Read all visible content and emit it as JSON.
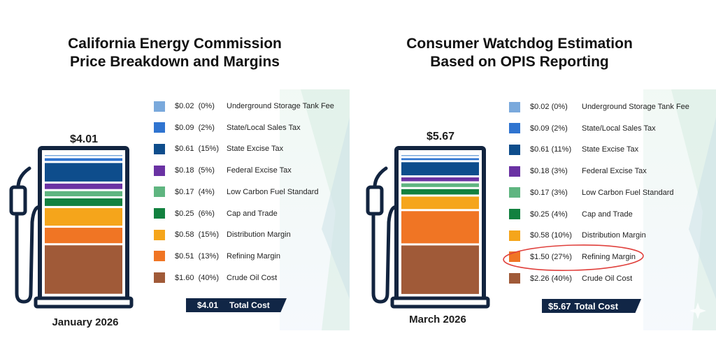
{
  "colors": {
    "ust": "#7aa9dc",
    "sales": "#2f74d0",
    "excise": "#0e4d8c",
    "federal": "#6a32a3",
    "lcfs": "#5fb580",
    "cap": "#12813f",
    "distribution": "#f5a51b",
    "refining": "#f07524",
    "crude": "#a05a38",
    "frame": "#12243f",
    "total_bg": "#112646",
    "annotation": "#e0403c"
  },
  "chart_data": [
    {
      "type": "bar",
      "stacked": true,
      "title": "California Energy Commission Price Breakdown and Margins",
      "title_lines": [
        "California Energy Commission",
        "Price Breakdown and Margins"
      ],
      "period": "January 2026",
      "total_label": "$4.01",
      "total_value": 4.01,
      "total_box": {
        "value": "$4.01",
        "label": "Total Cost"
      },
      "categories": [
        "Underground Storage Tank Fee",
        "State/Local Sales Tax",
        "State Excise Tax",
        "Federal Excise Tax",
        "Low Carbon Fuel Standard",
        "Cap and Trade",
        "Distribution Margin",
        "Refining Margin",
        "Crude Oil Cost"
      ],
      "series": [
        {
          "key": "ust",
          "name": "Underground Storage Tank Fee",
          "value": 0.02,
          "value_label": "$0.02",
          "pct_label": "(0%)"
        },
        {
          "key": "sales",
          "name": "State/Local Sales Tax",
          "value": 0.09,
          "value_label": "$0.09",
          "pct_label": "(2%)"
        },
        {
          "key": "excise",
          "name": "State Excise Tax",
          "value": 0.61,
          "value_label": "$0.61",
          "pct_label": "(15%)"
        },
        {
          "key": "federal",
          "name": "Federal Excise Tax",
          "value": 0.18,
          "value_label": "$0.18",
          "pct_label": "(5%)"
        },
        {
          "key": "lcfs",
          "name": "Low Carbon Fuel Standard",
          "value": 0.17,
          "value_label": "$0.17",
          "pct_label": "(4%)"
        },
        {
          "key": "cap",
          "name": "Cap and Trade",
          "value": 0.25,
          "value_label": "$0.25",
          "pct_label": "(6%)"
        },
        {
          "key": "distribution",
          "name": "Distribution Margin",
          "value": 0.58,
          "value_label": "$0.58",
          "pct_label": "(15%)"
        },
        {
          "key": "refining",
          "name": "Refining Margin",
          "value": 0.51,
          "value_label": "$0.51",
          "pct_label": "(13%)"
        },
        {
          "key": "crude",
          "name": "Crude Oil Cost",
          "value": 1.6,
          "value_label": "$1.60",
          "pct_label": "(40%)"
        }
      ]
    },
    {
      "type": "bar",
      "stacked": true,
      "title": "Consumer Watchdog Estimation Based on OPIS Reporting",
      "title_lines": [
        "Consumer Watchdog Estimation",
        "Based on OPIS Reporting"
      ],
      "period": "March 2026",
      "total_label": "$5.67",
      "total_value": 5.67,
      "total_box": {
        "value": "$5.67",
        "label": "Total Cost"
      },
      "highlighted": "Refining Margin",
      "categories": [
        "Underground Storage Tank Fee",
        "State/Local Sales Tax",
        "State Excise Tax",
        "Federal Excise Tax",
        "Low Carbon Fuel Standard",
        "Cap and Trade",
        "Distribution Margin",
        "Refining Margin",
        "Crude Oil Cost"
      ],
      "series": [
        {
          "key": "ust",
          "name": "Underground Storage Tank Fee",
          "value": 0.02,
          "value_label": "$0.02",
          "pct_label": "(0%)"
        },
        {
          "key": "sales",
          "name": "State/Local Sales Tax",
          "value": 0.09,
          "value_label": "$0.09",
          "pct_label": "(2%)"
        },
        {
          "key": "excise",
          "name": "State Excise Tax",
          "value": 0.61,
          "value_label": "$0.61",
          "pct_label": "(11%)"
        },
        {
          "key": "federal",
          "name": "Federal Excise Tax",
          "value": 0.18,
          "value_label": "$0.18",
          "pct_label": "(3%)"
        },
        {
          "key": "lcfs",
          "name": "Low Carbon Fuel Standard",
          "value": 0.17,
          "value_label": "$0.17",
          "pct_label": "(3%)"
        },
        {
          "key": "cap",
          "name": "Cap and Trade",
          "value": 0.25,
          "value_label": "$0.25",
          "pct_label": "(4%)"
        },
        {
          "key": "distribution",
          "name": "Distribution Margin",
          "value": 0.58,
          "value_label": "$0.58",
          "pct_label": "(10%)"
        },
        {
          "key": "refining",
          "name": "Refining Margin",
          "value": 1.5,
          "value_label": "$1.50",
          "pct_label": "(27%)"
        },
        {
          "key": "crude",
          "name": "Crude Oil Cost",
          "value": 2.26,
          "value_label": "$2.26",
          "pct_label": "(40%)"
        }
      ]
    }
  ]
}
